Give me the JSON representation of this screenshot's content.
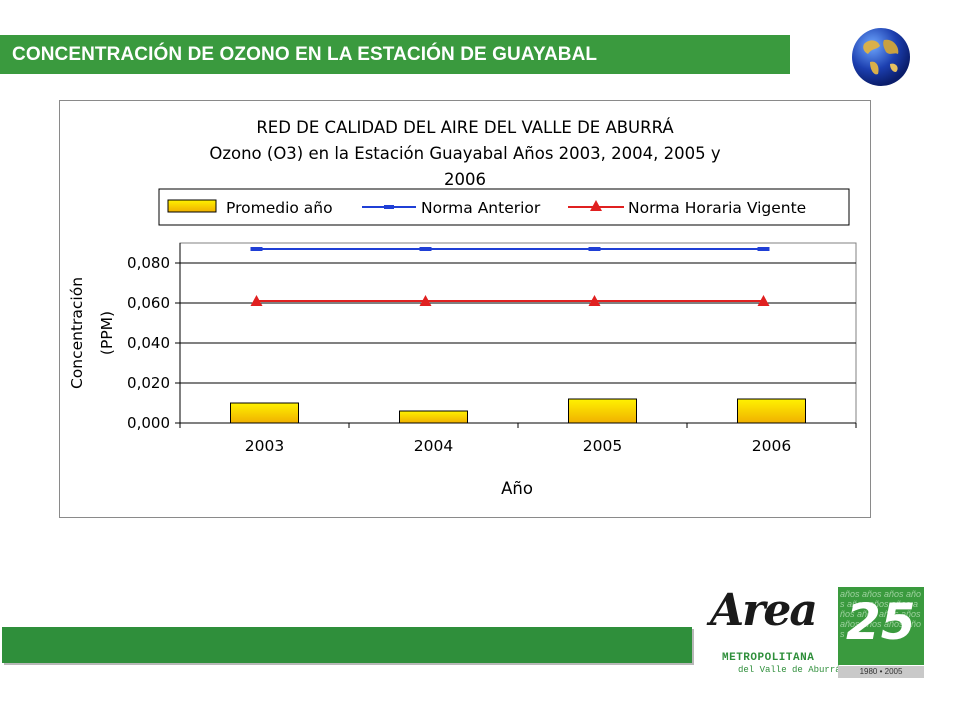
{
  "header": {
    "title": "CONCENTRACIÓN DE OZONO EN LA ESTACIÓN DE GUAYABAL"
  },
  "logo": {
    "script_text": "Area",
    "metropolitana": "METROPOLITANA",
    "valle": "del Valle de Aburrá",
    "anniversary_number": "25",
    "anniversary_bg_text": "años años años años años años años años años años años años años años años años",
    "anniversary_years": "1980 • 2005"
  },
  "colors": {
    "header_bg": "#3a9a3e",
    "bar_fill_top": "#ffe600",
    "bar_fill_bottom": "#f2b800",
    "norma_anterior": "#1f3fd6",
    "norma_horaria": "#e02020",
    "plot_grid": "#000000"
  },
  "chart_data": {
    "type": "bar",
    "title_lines": [
      "RED DE CALIDAD DEL AIRE DEL VALLE DE ABURRÁ",
      "Ozono (O3) en la Estación Guayabal Años 2003, 2004, 2005 y",
      "2006"
    ],
    "xlabel": "Año",
    "ylabel_lines": [
      "Concentración",
      "(PPM)"
    ],
    "categories": [
      "2003",
      "2004",
      "2005",
      "2006"
    ],
    "ylim": [
      0,
      0.09
    ],
    "yticks": [
      0,
      0.02,
      0.04,
      0.06,
      0.08
    ],
    "ytick_labels": [
      "0,000",
      "0,020",
      "0,040",
      "0,060",
      "0,080"
    ],
    "grid": true,
    "legend_position": "top",
    "series": [
      {
        "name": "Promedio año",
        "kind": "bar",
        "values": [
          0.01,
          0.006,
          0.012,
          0.012
        ]
      },
      {
        "name": "Norma Anterior",
        "kind": "line",
        "marker": "dash",
        "values": [
          0.087,
          0.087,
          0.087,
          0.087
        ]
      },
      {
        "name": "Norma Horaria Vigente",
        "kind": "line",
        "marker": "triangle",
        "values": [
          0.061,
          0.061,
          0.061,
          0.061
        ]
      }
    ]
  }
}
